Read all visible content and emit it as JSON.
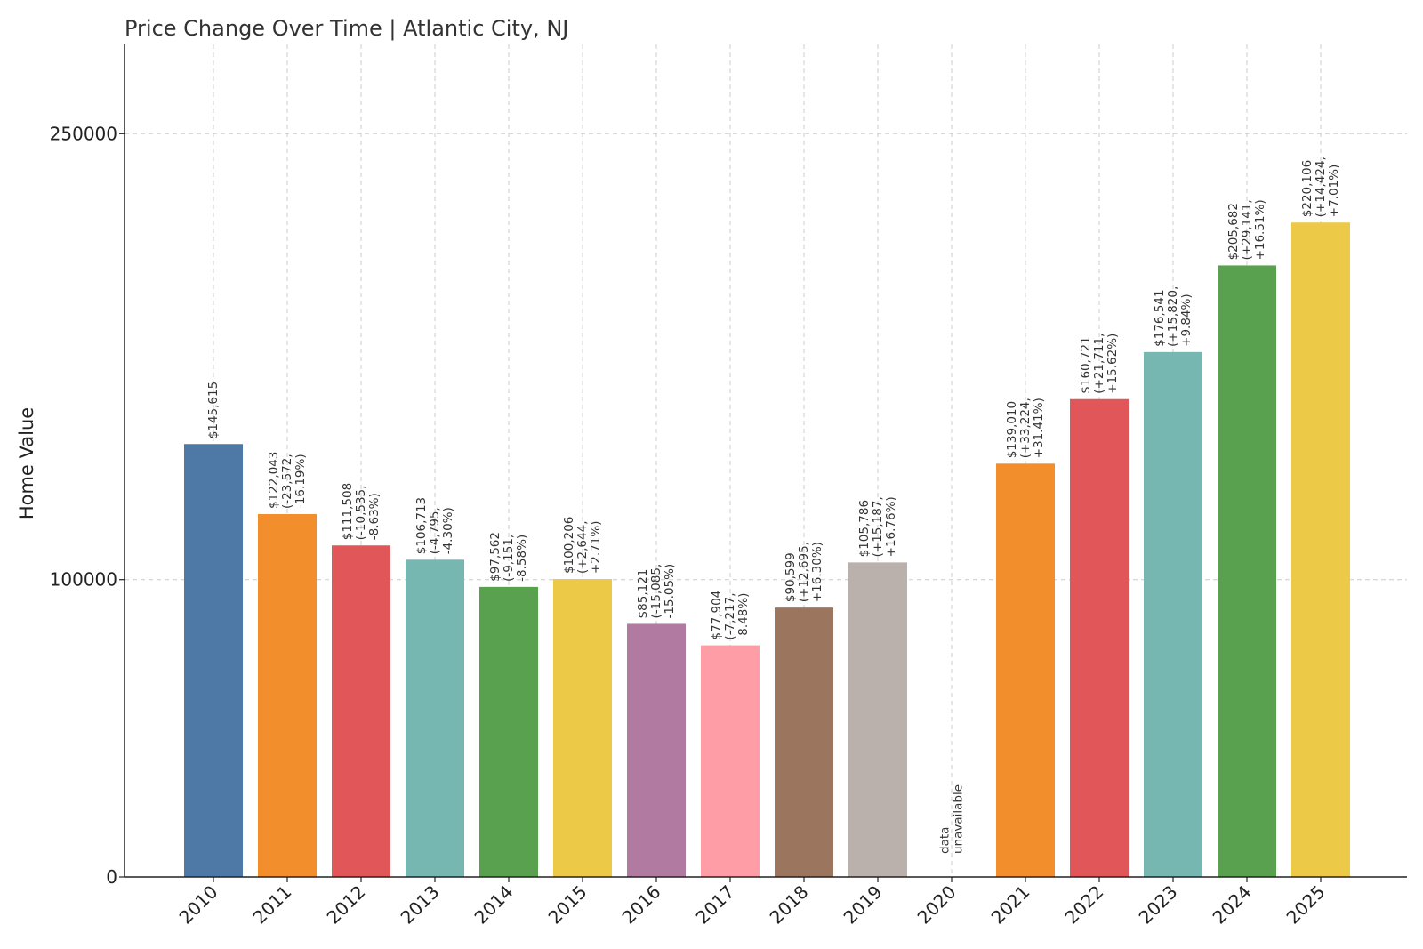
{
  "chart_data": {
    "type": "bar",
    "title": "Price Change Over Time | Atlantic City, NJ",
    "xlabel": "",
    "ylabel": "Home Value",
    "ylim": [
      0,
      280000
    ],
    "yticks": [
      0,
      100000,
      250000
    ],
    "ytick_labels": [
      "0",
      "100000",
      "250000"
    ],
    "grid": true,
    "categories": [
      "2010",
      "2011",
      "2012",
      "2013",
      "2014",
      "2015",
      "2016",
      "2017",
      "2018",
      "2019",
      "2020",
      "2021",
      "2022",
      "2023",
      "2024",
      "2025"
    ],
    "values": [
      145615,
      122043,
      111508,
      106713,
      97562,
      100206,
      85121,
      77904,
      90599,
      105786,
      null,
      139010,
      160721,
      176541,
      205682,
      220106
    ],
    "colors": [
      "#4e79a7",
      "#f28e2b",
      "#e15759",
      "#76b7b2",
      "#59a14f",
      "#edc948",
      "#b07aa1",
      "#ff9da7",
      "#9c755f",
      "#bab0ac",
      "#4e79a7",
      "#f28e2b",
      "#e15759",
      "#76b7b2",
      "#59a14f",
      "#edc948"
    ],
    "annotations": [
      [
        "$145,615"
      ],
      [
        "$122,043",
        "(-23,572,",
        "-16.19%)"
      ],
      [
        "$111,508",
        "(-10,535,",
        "-8.63%)"
      ],
      [
        "$106,713",
        "(-4,795,",
        "-4.30%)"
      ],
      [
        "$97,562",
        "(-9,151,",
        "-8.58%)"
      ],
      [
        "$100,206",
        "(+2,644,",
        "+2.71%)"
      ],
      [
        "$85,121",
        "(-15,085,",
        "-15.05%)"
      ],
      [
        "$77,904",
        "(-7,217,",
        "-8.48%)"
      ],
      [
        "$90,599",
        "(+12,695,",
        "+16.30%)"
      ],
      [
        "$105,786",
        "(+15,187,",
        "+16.76%)"
      ],
      [
        "data",
        "unavailable"
      ],
      [
        "$139,010",
        "(+33,224,",
        "+31.41%)"
      ],
      [
        "$160,721",
        "(+21,711,",
        "+15.62%)"
      ],
      [
        "$176,541",
        "(+15,820,",
        "+9.84%)"
      ],
      [
        "$205,682",
        "(+29,141,",
        "+16.51%)"
      ],
      [
        "$220,106",
        "(+14,424,",
        "+7.01%)"
      ]
    ]
  }
}
